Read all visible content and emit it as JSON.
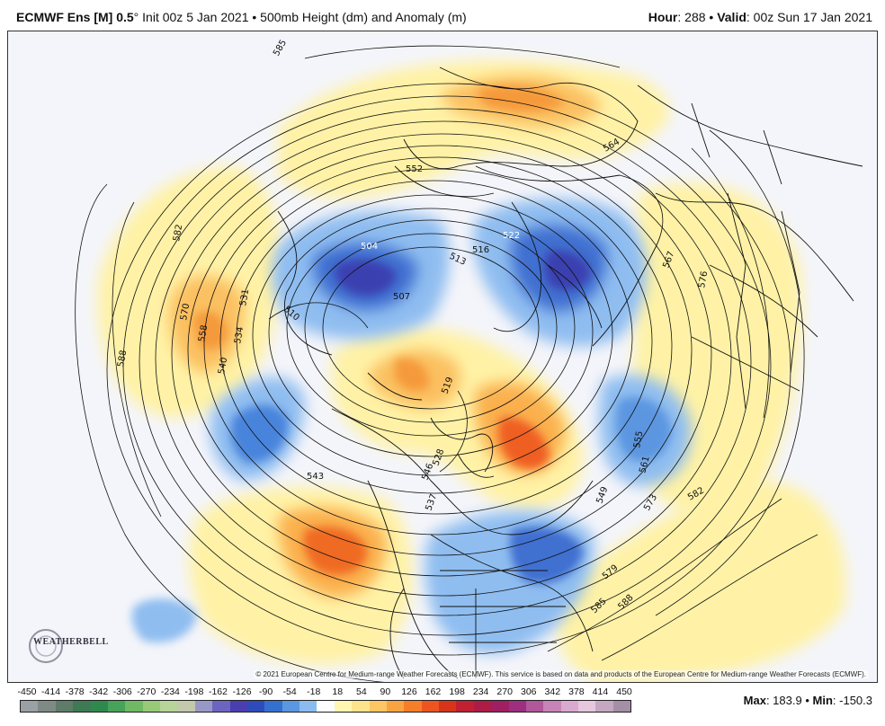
{
  "header": {
    "model": "ECMWF Ens [M] 0.5",
    "degree": "°",
    "init": "Init 00z 5 Jan 2021",
    "bullet": "•",
    "field": "500mb Height (dm) and Anomaly (m)",
    "hour_label": "Hour",
    "hour_value": ": 288",
    "valid_label": "Valid",
    "valid_value": ": 00z Sun 17 Jan 2021"
  },
  "credit": "© 2021 European Centre for Medium-range Weather Forecasts (ECMWF). This service is based on data and products of the European Centre for Medium-range Weather Forecasts (ECMWF).",
  "logo_text": "WEATHERBELL",
  "contour_labels": [
    "504",
    "510",
    "507",
    "516",
    "513",
    "522",
    "552",
    "564",
    "567",
    "576",
    "582",
    "570",
    "558",
    "531",
    "534",
    "540",
    "588",
    "543",
    "546",
    "537",
    "549",
    "555",
    "561",
    "573",
    "582",
    "579",
    "585",
    "588",
    "585",
    "528",
    "519"
  ],
  "legend": {
    "ticks": [
      "-450",
      "-414",
      "-378",
      "-342",
      "-306",
      "-270",
      "-234",
      "-198",
      "-162",
      "-126",
      "-90",
      "-54",
      "-18",
      "18",
      "54",
      "90",
      "126",
      "162",
      "198",
      "234",
      "270",
      "306",
      "342",
      "378",
      "414",
      "450"
    ],
    "colors": [
      "#9aa0a4",
      "#7f8a86",
      "#5e7c69",
      "#3e7a54",
      "#2e8a4c",
      "#47a25a",
      "#71b864",
      "#98c978",
      "#b7d499",
      "#c3c9ab",
      "#9898c8",
      "#6d64c0",
      "#4a3fb0",
      "#2e4bbb",
      "#3470d0",
      "#5b96e0",
      "#8abcf0",
      "#fdfdfd",
      "#fff6b0",
      "#fde48c",
      "#fbc663",
      "#f9a443",
      "#f57e2a",
      "#ec5520",
      "#d8341a",
      "#c12030",
      "#ac1c47",
      "#a01f63",
      "#9c2f7e",
      "#b1579a",
      "#c884b8",
      "#d9aad0",
      "#e6c7de",
      "#c4a8c2",
      "#a58fa5"
    ],
    "max_label": "Max",
    "max_value": ": 183.9",
    "min_label": "Min",
    "min_value": ": -150.3"
  }
}
